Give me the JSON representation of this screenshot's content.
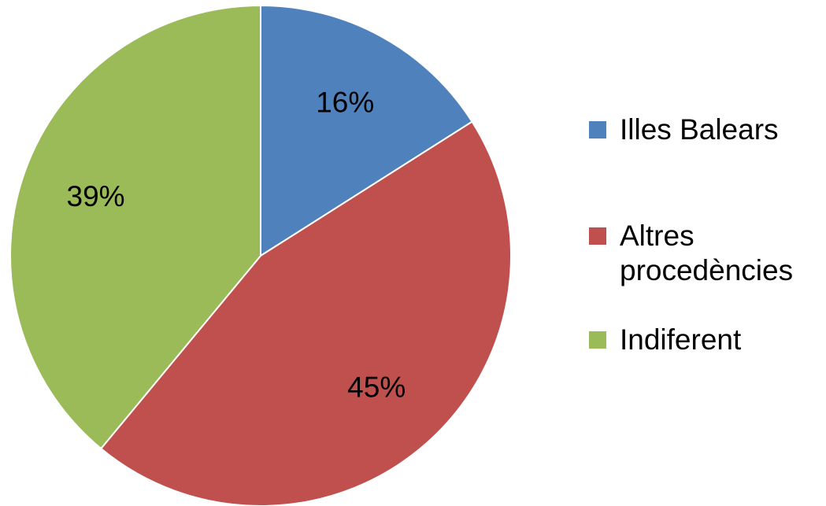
{
  "chart_data": {
    "type": "pie",
    "title": "",
    "slices": [
      {
        "label": "Illes Balears",
        "value": 16,
        "display": "16%",
        "color": "#4F81BD"
      },
      {
        "label": "Altres procedències",
        "value": 45,
        "display": "45%",
        "color": "#C0504D"
      },
      {
        "label": "Indiferent",
        "value": 39,
        "display": "39%",
        "color": "#9BBB59"
      }
    ],
    "start_angle_deg": 0,
    "direction": "clockwise",
    "legend_position": "right",
    "data_labels": "inside"
  }
}
